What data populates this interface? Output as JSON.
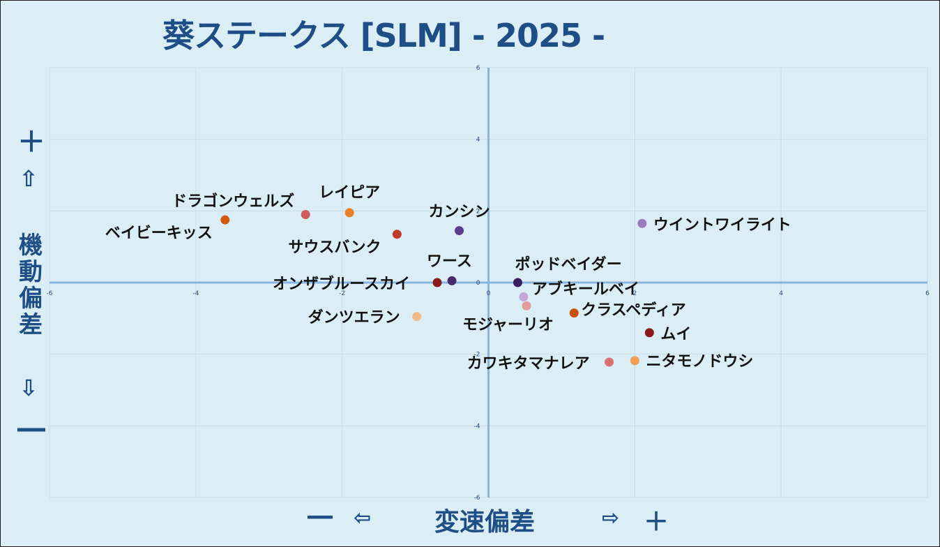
{
  "title": "葵ステークス [SLM]  - 2025 -",
  "y_axis": {
    "plus": "＋",
    "up_arrow": "⇧",
    "label": "機動偏差",
    "down_arrow": "⇩",
    "minus": "―"
  },
  "x_axis": {
    "minus": "―",
    "left_arrow": "⇦",
    "label": "変速偏差",
    "right_arrow": "⇨",
    "plus": "＋"
  },
  "chart_data": {
    "type": "scatter",
    "title": "葵ステークス [SLM]  - 2025 -",
    "xlabel": "変速偏差",
    "ylabel": "機動偏差",
    "xlim": [
      -6,
      6
    ],
    "ylim": [
      -6,
      6
    ],
    "x_ticks": [
      "-6",
      "-4",
      "-2",
      "0",
      "2",
      "4",
      "6"
    ],
    "y_ticks": [
      "6",
      "4",
      "2",
      "0",
      "-2",
      "-4",
      "-6"
    ],
    "grid": true,
    "points": [
      {
        "name": "ドラゴンウェルズ",
        "x": -2.5,
        "y": 1.9,
        "color": "#cd5c5c"
      },
      {
        "name": "レイピア",
        "x": -1.9,
        "y": 1.95,
        "color": "#e8812a"
      },
      {
        "name": "ベイビーキッス",
        "x": -3.6,
        "y": 1.75,
        "color": "#d2590f"
      },
      {
        "name": "サウスバンク",
        "x": -1.25,
        "y": 1.35,
        "color": "#c0392b"
      },
      {
        "name": "カンシン",
        "x": -0.4,
        "y": 1.45,
        "color": "#5e3c8c"
      },
      {
        "name": "ウイントワイライト",
        "x": 2.1,
        "y": 1.65,
        "color": "#9b7bbf"
      },
      {
        "name": "ワース",
        "x": -0.5,
        "y": 0.05,
        "color": "#4a2a6a"
      },
      {
        "name": "オンザブルースカイ",
        "x": -0.7,
        "y": 0.0,
        "color": "#8b1a1a"
      },
      {
        "name": "ポッドベイダー",
        "x": 0.4,
        "y": 0.0,
        "color": "#3a1d5c"
      },
      {
        "name": "アブキールベイ",
        "x": 0.48,
        "y": -0.4,
        "color": "#c6a6d6"
      },
      {
        "name": "モジャーリオ",
        "x": 0.52,
        "y": -0.65,
        "color": "#e39a9a"
      },
      {
        "name": "クラスペディア",
        "x": 1.17,
        "y": -0.85,
        "color": "#c8510e"
      },
      {
        "name": "ダンツエラン",
        "x": -0.98,
        "y": -0.95,
        "color": "#f2b98a"
      },
      {
        "name": "ムイ",
        "x": 2.2,
        "y": -1.4,
        "color": "#8b1a1a"
      },
      {
        "name": "カワキタマナレア",
        "x": 1.65,
        "y": -2.22,
        "color": "#d97373"
      },
      {
        "name": "ニタモノドウシ",
        "x": 2.0,
        "y": -2.18,
        "color": "#f0a050"
      }
    ]
  }
}
